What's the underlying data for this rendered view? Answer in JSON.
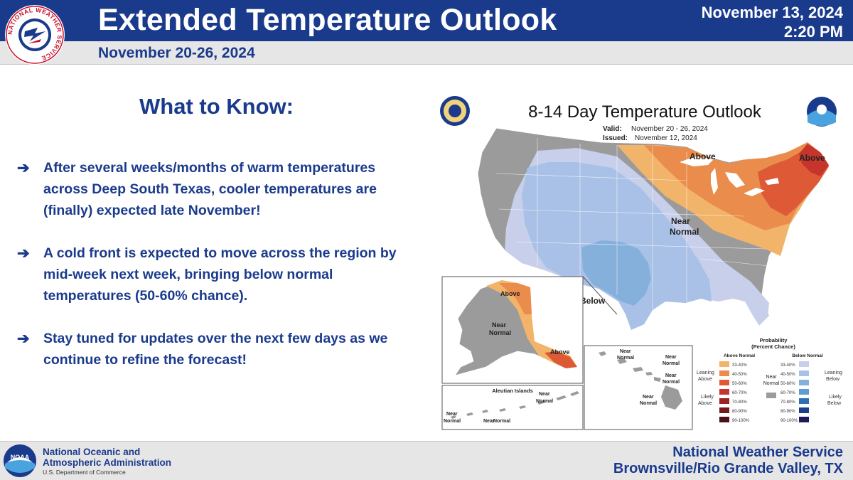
{
  "header": {
    "title": "Extended Temperature Outlook",
    "subtitle": "November 20-26, 2024",
    "date": "November 13, 2024",
    "time": "2:20 PM",
    "logo_text": "NATIONAL WEATHER SERVICE"
  },
  "main": {
    "heading": "What to Know:",
    "bullets": [
      "After several weeks/months of warm temperatures across Deep South Texas, cooler temperatures are (finally) expected late November!",
      "A cold front is expected to move across the region by mid-week next week, bringing below normal temperatures (50-60% chance).",
      "Stay tuned for updates over the next few days as we continue to refine the forecast!"
    ]
  },
  "map": {
    "title": "8-14 Day Temperature Outlook",
    "valid_label": "Valid:",
    "valid_value": "November 20 - 26, 2024",
    "issued_label": "Issued:",
    "issued_value": "November 12, 2024",
    "labels": {
      "above": "Above",
      "below": "Below",
      "near": "Near",
      "normal": "Normal",
      "aleutian": "Aleutian Islands"
    },
    "legend": {
      "title1": "Probability",
      "title2": "(Percent Chance)",
      "above_header": "Above Normal",
      "below_header": "Below Normal",
      "leaning": "Leaning",
      "likely": "Likely",
      "above": "Above",
      "below": "Below",
      "near": "Near",
      "normal": "Normal",
      "ranges": [
        "33-40%",
        "40-50%",
        "50-60%",
        "60-70%",
        "70-80%",
        "80-90%",
        "90-100%"
      ],
      "above_colors": [
        "#f2b46a",
        "#ea8c4b",
        "#de5a36",
        "#c6352c",
        "#9e2324",
        "#741b1f",
        "#4a1216"
      ],
      "below_colors": [
        "#c8cfea",
        "#a9c1e6",
        "#86b0dc",
        "#5b9ed6",
        "#2f6fb8",
        "#1c3e8c",
        "#1d1a55"
      ],
      "near_color": "#9b9b9b"
    }
  },
  "footer": {
    "noaa_name_line1": "National Oceanic and",
    "noaa_name_line2": "Atmospheric Administration",
    "noaa_dept": "U.S. Department of Commerce",
    "noaa_logo_text": "NOAA",
    "office_line1": "National Weather Service",
    "office_line2": "Brownsville/Rio Grande Valley, TX"
  },
  "colors": {
    "brand_blue": "#1a3a8c",
    "footer_gray": "#e6e6e6"
  }
}
